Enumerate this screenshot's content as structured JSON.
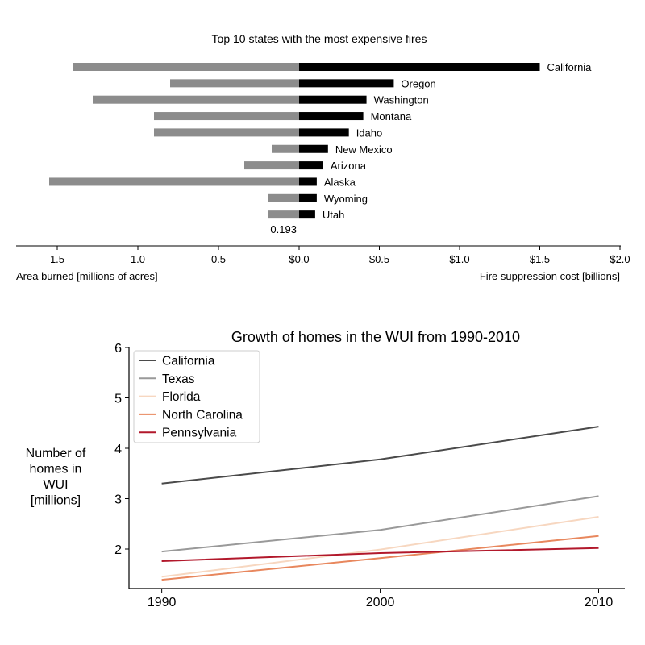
{
  "chart_data": [
    {
      "type": "bar",
      "title": "Top 10 states with the most expensive fires",
      "categories": [
        "California",
        "Oregon",
        "Washington",
        "Montana",
        "Idaho",
        "New Mexico",
        "Arizona",
        "Alaska",
        "Wyoming",
        "Utah"
      ],
      "series": [
        {
          "name": "Area burned [millions of acres]",
          "values": [
            1.4,
            0.8,
            1.28,
            0.9,
            0.9,
            0.17,
            0.34,
            1.55,
            0.193,
            0.193
          ],
          "color": "#8c8c8c"
        },
        {
          "name": "Fire suppression cost [billions]",
          "values": [
            1.5,
            0.59,
            0.42,
            0.4,
            0.31,
            0.18,
            0.15,
            0.11,
            0.11,
            0.1
          ],
          "color": "#000000"
        }
      ],
      "annotation": "0.193",
      "left_axis": {
        "label": "Area burned [millions of acres]",
        "ticks": [
          "1.5",
          "1.0",
          "0.5"
        ],
        "tick_values": [
          1.5,
          1.0,
          0.5
        ],
        "lim": [
          0,
          1.75
        ]
      },
      "right_axis": {
        "label": "Fire suppression cost [billions]",
        "ticks": [
          "$0.0",
          "$0.5",
          "$1.0",
          "$1.5",
          "$2.0"
        ],
        "tick_values": [
          0,
          0.5,
          1.0,
          1.5,
          2.0
        ],
        "lim": [
          0,
          2.0
        ]
      },
      "orientation": "horizontal",
      "grid": false
    },
    {
      "type": "line",
      "title": "Growth of homes in the WUI from 1990-2010",
      "ylabel": [
        "Number of",
        "homes in",
        "WUI",
        "[millions]"
      ],
      "x": [
        1990,
        2000,
        2010
      ],
      "x_ticks": [
        "1990",
        "2000",
        "2010"
      ],
      "y_ticks": [
        "2",
        "3",
        "4",
        "5",
        "6"
      ],
      "y_tick_values": [
        2,
        3,
        4,
        5,
        6
      ],
      "ylim": [
        1.45,
        6
      ],
      "xlim": [
        1988.5,
        2011.2
      ],
      "legend": "top-left",
      "grid": false,
      "series": [
        {
          "name": "California",
          "values": [
            3.3,
            3.78,
            4.43
          ],
          "color": "#4a4a4a"
        },
        {
          "name": "Texas",
          "values": [
            1.95,
            2.38,
            3.05
          ],
          "color": "#999999"
        },
        {
          "name": "Florida",
          "values": [
            1.45,
            1.99,
            2.64
          ],
          "color": "#f7d7c0"
        },
        {
          "name": "North Carolina",
          "values": [
            1.39,
            1.82,
            2.26
          ],
          "color": "#e8875d"
        },
        {
          "name": "Pennsylvania",
          "values": [
            1.76,
            1.92,
            2.02
          ],
          "color": "#b2182b"
        }
      ]
    }
  ]
}
